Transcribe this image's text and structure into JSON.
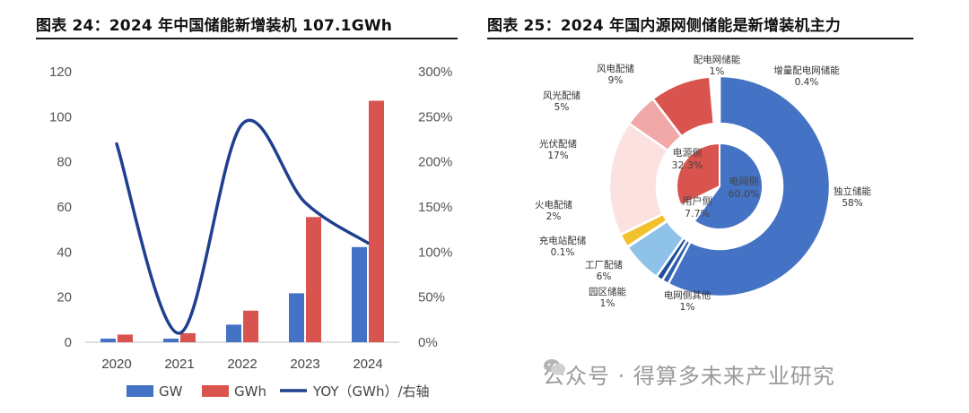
{
  "left_title": "图表 24：2024 年中国储能新增装机 107.1GWh",
  "right_title": "图表 25：2024 年国内源网侧储能是新增装机主力",
  "watermark": "公众号 · 得算多未来产业研究",
  "colors": {
    "gw": "#4472c4",
    "gwh": "#d9534f",
    "yoy": "#1f3f8f"
  },
  "chart_data": [
    {
      "type": "bar",
      "title": "2024 年中国储能新增装机 107.1GWh",
      "categories": [
        "2020",
        "2021",
        "2022",
        "2023",
        "2024"
      ],
      "series": [
        {
          "name": "GW",
          "values": [
            1.6,
            1.6,
            7.8,
            21.7,
            42.2
          ]
        },
        {
          "name": "GWh",
          "values": [
            3.4,
            4.0,
            14.0,
            55.5,
            107.1
          ]
        },
        {
          "name": "YOY（GWh）/右轴",
          "axis": "right",
          "type": "line",
          "values": [
            2.2,
            0.1,
            2.42,
            1.55,
            1.1
          ]
        }
      ],
      "yticks_left": [
        "0",
        "20",
        "40",
        "60",
        "80",
        "100",
        "120"
      ],
      "yticks_right": [
        "0%",
        "50%",
        "100%",
        "150%",
        "200%",
        "250%",
        "300%"
      ],
      "ylim_left": [
        0,
        120
      ],
      "ylim_right": [
        0,
        3.0
      ],
      "legend": [
        "GW",
        "GWh",
        "YOY（GWh）/右轴"
      ]
    },
    {
      "type": "pie",
      "title": "2024 年国内源网侧储能是新增装机主力",
      "outer": [
        {
          "name": "独立储能",
          "value": 58,
          "label": "独立储能",
          "pct": "58%",
          "color": "#4472c4"
        },
        {
          "name": "电网侧其他",
          "value": 1,
          "label": "电网侧其他",
          "pct": "1%",
          "color": "#2e5fae"
        },
        {
          "name": "园区储能",
          "value": 1,
          "label": "园区储能",
          "pct": "1%",
          "color": "#1f4e9b"
        },
        {
          "name": "工厂配储",
          "value": 6,
          "label": "工厂配储",
          "pct": "6%",
          "color": "#8ec2e8"
        },
        {
          "name": "充电站配储",
          "value": 0.1,
          "label": "充电站配储",
          "pct": "0.1%",
          "color": "#9fd0f0"
        },
        {
          "name": "火电配储",
          "value": 2,
          "label": "火电配储",
          "pct": "2%",
          "color": "#f2c12e"
        },
        {
          "name": "光伏配储",
          "value": 17,
          "label": "光伏配储",
          "pct": "17%",
          "color": "#fce1e1"
        },
        {
          "name": "风光配储",
          "value": 5,
          "label": "风光配储",
          "pct": "5%",
          "color": "#f0a8a8"
        },
        {
          "name": "风电配储",
          "value": 9,
          "label": "风电配储",
          "pct": "9%",
          "color": "#d9534f"
        },
        {
          "name": "配电网储能",
          "value": 1,
          "label": "配电网储能",
          "pct": "1%",
          "color": "#ffffff"
        },
        {
          "name": "增量配电网储能",
          "value": 0.4,
          "label": "增量配电网储能",
          "pct": "0.4%",
          "color": "#ffffff"
        }
      ],
      "inner": [
        {
          "name": "电网侧",
          "value": 60.0,
          "label": "电网侧",
          "pct": "60.0%",
          "color": "#4472c4"
        },
        {
          "name": "用户侧",
          "value": 7.7,
          "label": "用户侧",
          "pct": "7.7%",
          "color": "#ffffff"
        },
        {
          "name": "电源侧",
          "value": 32.3,
          "label": "电源侧",
          "pct": "32.3%",
          "color": "#d9534f"
        }
      ]
    }
  ]
}
